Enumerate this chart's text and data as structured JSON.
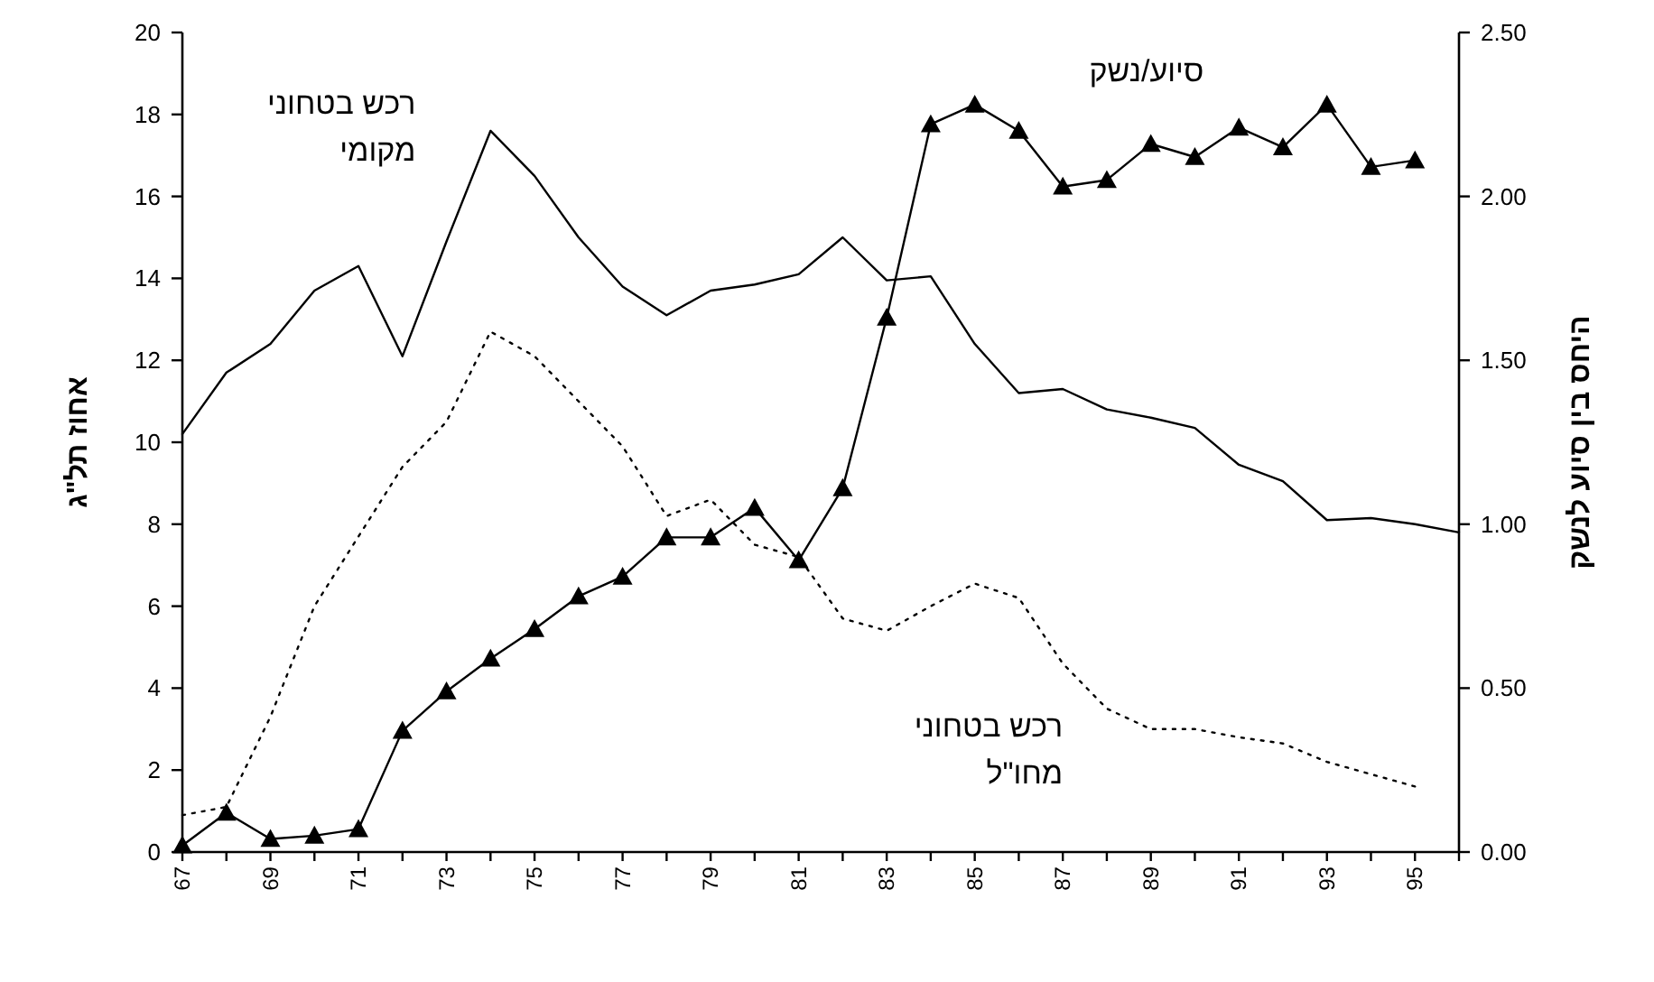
{
  "chart_data": {
    "type": "line",
    "ylabel": "אחוז תל\"ג",
    "y2label": "היחס בין סיוע לנשק",
    "x": [
      67,
      68,
      69,
      70,
      71,
      72,
      73,
      74,
      75,
      76,
      77,
      78,
      79,
      80,
      81,
      82,
      83,
      84,
      85,
      86,
      87,
      88,
      89,
      90,
      91,
      92,
      93,
      94,
      95
    ],
    "series": [
      {
        "name": "רכש בטחוני מקומי",
        "color": "#000000",
        "line_style": "solid",
        "marker": "none",
        "x": [
          67,
          68,
          69,
          70,
          71,
          72,
          73,
          74,
          75,
          76,
          77,
          78,
          79,
          80,
          81,
          82,
          83,
          84,
          85,
          86,
          87,
          88,
          89,
          90,
          91,
          92,
          93,
          94,
          95,
          96
        ],
        "values": [
          10.2,
          11.7,
          12.4,
          13.7,
          14.3,
          12.1,
          14.9,
          17.6,
          16.5,
          15.0,
          13.8,
          13.1,
          13.7,
          13.85,
          14.1,
          15.0,
          13.95,
          14.05,
          12.4,
          11.2,
          11.3,
          10.8,
          10.6,
          10.35,
          9.45,
          9.05,
          8.1,
          8.15,
          8.0,
          7.8
        ]
      },
      {
        "name": "רכש בטחוני מחו\"ל",
        "color": "#000000",
        "line_style": "dotted",
        "marker": "none",
        "values": [
          0.9,
          1.1,
          3.3,
          6.0,
          7.7,
          9.4,
          10.5,
          12.7,
          12.1,
          11.0,
          9.9,
          8.2,
          8.6,
          7.5,
          7.2,
          5.7,
          5.4,
          6.0,
          6.55,
          6.2,
          4.6,
          3.5,
          3.0,
          3.0,
          2.8,
          2.65,
          2.2,
          1.9,
          1.6
        ]
      },
      {
        "name": "סיוע/נשק",
        "color": "#000000",
        "line_style": "solid",
        "marker": "triangle",
        "axis": "y2",
        "values": [
          0.02,
          0.12,
          0.04,
          0.05,
          0.07,
          0.37,
          0.49,
          0.59,
          0.68,
          0.78,
          0.84,
          0.96,
          0.96,
          1.05,
          0.89,
          1.11,
          1.63,
          2.22,
          2.28,
          2.2,
          2.03,
          2.05,
          2.16,
          2.12,
          2.21,
          2.15,
          2.28,
          2.09,
          2.11
        ]
      }
    ],
    "xlim": [
      67,
      96
    ],
    "xticks": [
      67,
      {
        "value": 68,
        "label": null
      },
      69,
      {
        "value": 70,
        "label": null
      },
      71,
      {
        "value": 72,
        "label": null
      },
      73,
      {
        "value": 74,
        "label": null
      },
      75,
      {
        "value": 76,
        "label": null
      },
      77,
      {
        "value": 78,
        "label": null
      },
      79,
      {
        "value": 80,
        "label": null
      },
      81,
      {
        "value": 82,
        "label": null
      },
      83,
      {
        "value": 84,
        "label": null
      },
      85,
      {
        "value": 86,
        "label": null
      },
      87,
      {
        "value": 88,
        "label": null
      },
      89,
      {
        "value": 90,
        "label": null
      },
      91,
      {
        "value": 92,
        "label": null
      },
      93,
      {
        "value": 94,
        "label": null
      },
      95,
      {
        "value": 96,
        "label": null
      }
    ],
    "ylim": [
      0,
      20
    ],
    "yticks": [
      0,
      2,
      4,
      6,
      8,
      10,
      12,
      14,
      16,
      18,
      20
    ],
    "y2lim": [
      0,
      2.5
    ],
    "y2ticks": [
      {
        "value": 0,
        "label": "0.00"
      },
      {
        "value": 0.5,
        "label": "0.50"
      },
      {
        "value": 1,
        "label": "1.00"
      },
      {
        "value": 1.5,
        "label": "1.50"
      },
      {
        "value": 2,
        "label": "2.00"
      },
      {
        "value": 2.5,
        "label": "2.50"
      }
    ],
    "grid": false,
    "legend": false
  }
}
